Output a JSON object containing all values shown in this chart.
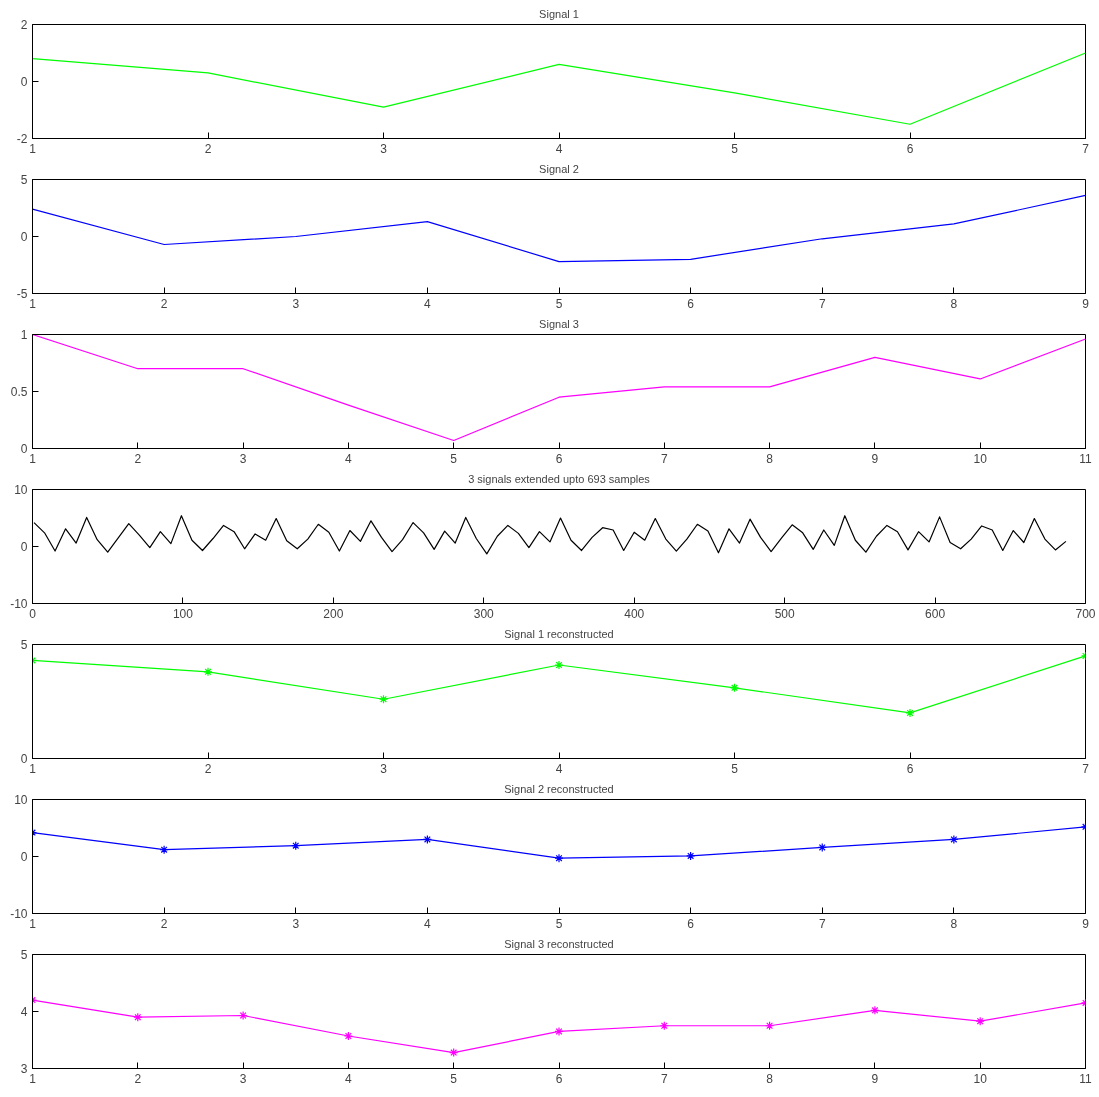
{
  "chart_data": [
    {
      "type": "line",
      "title": "Signal 1",
      "x": [
        1,
        2,
        3,
        4,
        5,
        6,
        7
      ],
      "xlim": [
        1,
        7
      ],
      "xticks": [
        1,
        2,
        3,
        4,
        5,
        6,
        7
      ],
      "ylim": [
        -2,
        2
      ],
      "yticks": [
        -2,
        0,
        2
      ],
      "series": [
        {
          "color": "#00ff00",
          "values": [
            0.8,
            0.3,
            -0.9,
            0.6,
            -0.4,
            -1.5,
            1.0
          ]
        }
      ]
    },
    {
      "type": "line",
      "title": "Signal 2",
      "x": [
        1,
        2,
        3,
        4,
        5,
        6,
        7,
        8,
        9
      ],
      "xlim": [
        1,
        9
      ],
      "xticks": [
        1,
        2,
        3,
        4,
        5,
        6,
        7,
        8,
        9
      ],
      "ylim": [
        -5,
        5
      ],
      "yticks": [
        -5,
        0,
        5
      ],
      "series": [
        {
          "color": "#0000ff",
          "values": [
            2.4,
            -0.7,
            0,
            1.3,
            -2.2,
            -2.0,
            -0.2,
            1.1,
            3.6
          ]
        }
      ]
    },
    {
      "type": "line",
      "title": "Signal 3",
      "x": [
        1,
        2,
        3,
        4,
        5,
        6,
        7,
        8,
        9,
        10,
        11
      ],
      "xlim": [
        1,
        11
      ],
      "xticks": [
        1,
        2,
        3,
        4,
        5,
        6,
        7,
        8,
        9,
        10,
        11
      ],
      "ylim": [
        0,
        1
      ],
      "yticks": [
        0,
        0.5,
        1
      ],
      "series": [
        {
          "color": "#ff00ff",
          "values": [
            1.0,
            0.7,
            0.7,
            0.38,
            0.07,
            0.45,
            0.54,
            0.54,
            0.8,
            0.61,
            0.96
          ]
        }
      ]
    },
    {
      "type": "line",
      "title": "3 signals extended upto 693 samples",
      "xlim": [
        0,
        700
      ],
      "xticks": [
        0,
        100,
        200,
        300,
        400,
        500,
        600,
        700
      ],
      "ylim": [
        -10,
        10
      ],
      "yticks": [
        -10,
        0,
        10
      ],
      "x": [
        1,
        8,
        15,
        22,
        29,
        36,
        43,
        50,
        57,
        64,
        71,
        78,
        85,
        92,
        99,
        106,
        113,
        120,
        127,
        134,
        141,
        148,
        155,
        162,
        169,
        176,
        183,
        190,
        197,
        204,
        211,
        218,
        225,
        232,
        239,
        246,
        253,
        260,
        267,
        274,
        281,
        288,
        295,
        302,
        309,
        316,
        323,
        330,
        337,
        344,
        351,
        358,
        365,
        372,
        379,
        386,
        393,
        400,
        407,
        414,
        421,
        428,
        435,
        442,
        449,
        456,
        463,
        470,
        477,
        484,
        491,
        498,
        505,
        512,
        519,
        526,
        533,
        540,
        547,
        554,
        561,
        568,
        575,
        582,
        589,
        596,
        603,
        610,
        617,
        624,
        631,
        638,
        645,
        652,
        659,
        666,
        673,
        680,
        687
      ],
      "series": [
        {
          "color": "#000000",
          "values": [
            4.2,
            2.4,
            -0.8,
            3.1,
            0.6,
            5.1,
            1.2,
            -1.0,
            1.5,
            4.0,
            2.0,
            -0.2,
            2.6,
            0.5,
            5.4,
            1.1,
            -0.7,
            1.4,
            3.7,
            2.6,
            -0.4,
            2.2,
            1.1,
            4.9,
            1.0,
            -0.4,
            1.3,
            3.9,
            2.5,
            -0.8,
            2.8,
            0.9,
            4.5,
            1.6,
            -0.9,
            1.2,
            4.2,
            2.4,
            -0.5,
            2.7,
            0.6,
            5.1,
            1.4,
            -1.3,
            1.8,
            3.7,
            2.3,
            -0.2,
            2.6,
            0.8,
            5.0,
            1.1,
            -0.7,
            1.6,
            3.3,
            2.9,
            -0.7,
            2.5,
            1.1,
            4.9,
            1.3,
            -0.8,
            1.3,
            3.9,
            2.7,
            -1.1,
            3.1,
            0.6,
            4.8,
            1.6,
            -0.9,
            1.5,
            3.8,
            2.4,
            -0.5,
            2.9,
            0.2,
            5.4,
            1.1,
            -1.0,
            1.8,
            3.7,
            2.6,
            -0.6,
            2.6,
            0.8,
            5.2,
            0.7,
            -0.4,
            1.3,
            3.6,
            2.9,
            -0.7,
            2.8,
            0.7,
            4.9,
            1.3,
            -0.6,
            0.9
          ]
        }
      ]
    },
    {
      "type": "line",
      "title": "Signal 1 reconstructed",
      "marker": "cross",
      "x": [
        1,
        2,
        3,
        4,
        5,
        6,
        7
      ],
      "xlim": [
        1,
        7
      ],
      "xticks": [
        1,
        2,
        3,
        4,
        5,
        6,
        7
      ],
      "ylim": [
        0,
        5
      ],
      "yticks": [
        0,
        5
      ],
      "series": [
        {
          "color": "#00ff00",
          "values": [
            4.3,
            3.8,
            2.6,
            4.1,
            3.1,
            2.0,
            4.5
          ]
        }
      ]
    },
    {
      "type": "line",
      "title": "Signal 2 reconstructed",
      "marker": "cross",
      "x": [
        1,
        2,
        3,
        4,
        5,
        6,
        7,
        8,
        9
      ],
      "xlim": [
        1,
        9
      ],
      "xticks": [
        1,
        2,
        3,
        4,
        5,
        6,
        7,
        8,
        9
      ],
      "ylim": [
        -10,
        10
      ],
      "yticks": [
        -10,
        0,
        10
      ],
      "series": [
        {
          "color": "#0000ff",
          "values": [
            4.2,
            1.2,
            1.9,
            3.0,
            -0.3,
            0.1,
            1.6,
            3.0,
            5.2
          ]
        }
      ]
    },
    {
      "type": "line",
      "title": "Signal 3 reconstructed",
      "marker": "cross",
      "x": [
        1,
        2,
        3,
        4,
        5,
        6,
        7,
        8,
        9,
        10,
        11
      ],
      "xlim": [
        1,
        11
      ],
      "xticks": [
        1,
        2,
        3,
        4,
        5,
        6,
        7,
        8,
        9,
        10,
        11
      ],
      "ylim": [
        3,
        5
      ],
      "yticks": [
        3,
        4,
        5
      ],
      "series": [
        {
          "color": "#ff00ff",
          "values": [
            4.2,
            3.9,
            3.93,
            3.57,
            3.28,
            3.65,
            3.75,
            3.75,
            4.02,
            3.83,
            4.15
          ]
        }
      ]
    }
  ]
}
